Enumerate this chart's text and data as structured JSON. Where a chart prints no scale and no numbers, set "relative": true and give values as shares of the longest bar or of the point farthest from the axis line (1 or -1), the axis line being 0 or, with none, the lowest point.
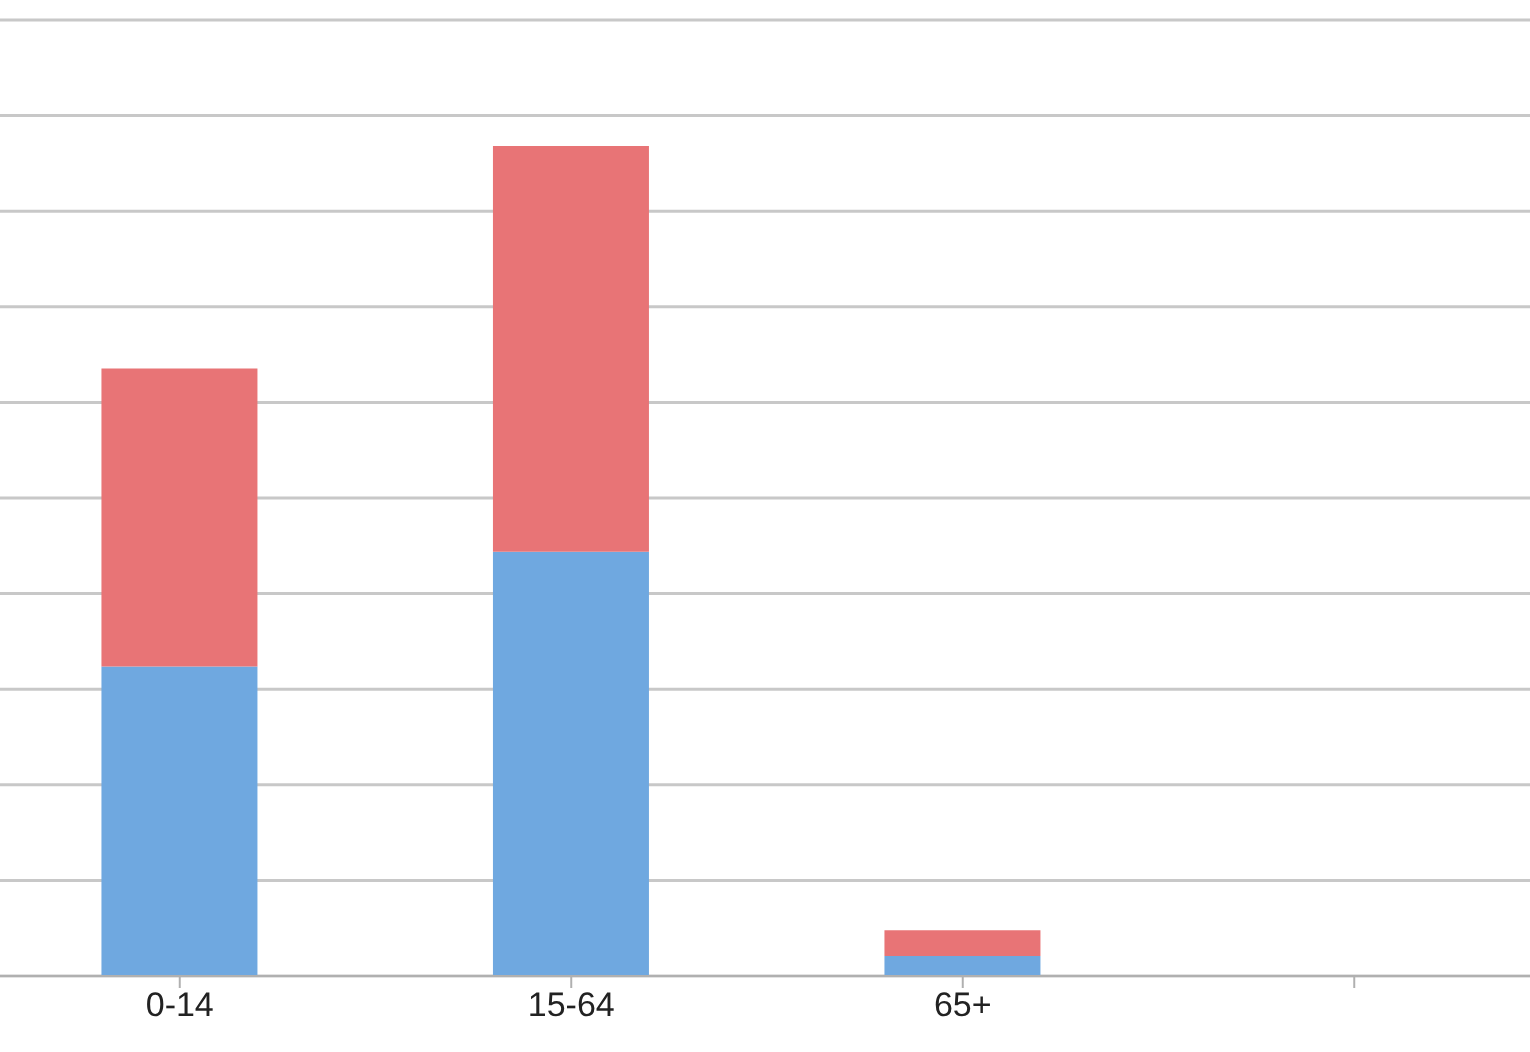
{
  "chart_data": {
    "type": "bar",
    "stacked": true,
    "relative": true,
    "grid": "y",
    "legend": false,
    "categories": [
      "0-14",
      "15-64",
      "65+",
      null
    ],
    "series": [
      {
        "color": "#6fa8e0",
        "values": [
          0.373,
          0.511,
          0.024,
          null
        ]
      },
      {
        "color": "#e87476",
        "values": [
          0.359,
          0.489,
          0.031,
          null
        ]
      }
    ]
  }
}
